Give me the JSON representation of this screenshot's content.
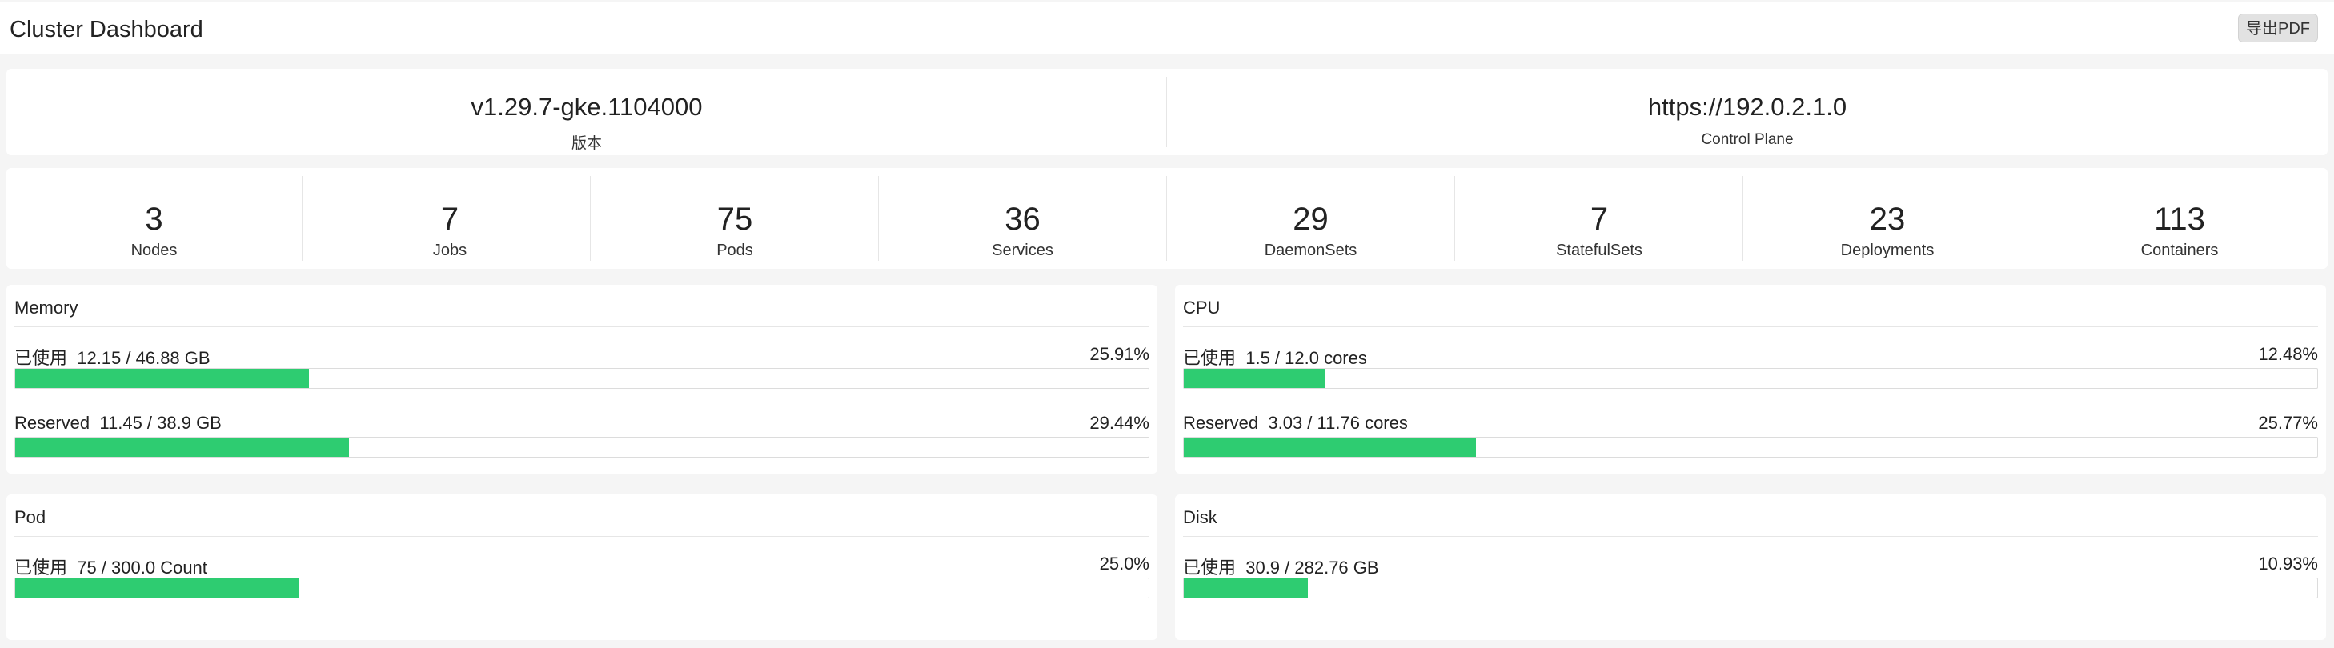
{
  "header": {
    "title": "Cluster Dashboard",
    "export_label": "导出PDF"
  },
  "cluster_info": [
    {
      "value": "v1.29.7-gke.1104000",
      "label": "版本"
    },
    {
      "value": "https://192.0.2.1.0",
      "label": "Control Plane"
    }
  ],
  "stats": [
    {
      "value": "3",
      "label": "Nodes"
    },
    {
      "value": "7",
      "label": "Jobs"
    },
    {
      "value": "75",
      "label": "Pods"
    },
    {
      "value": "36",
      "label": "Services"
    },
    {
      "value": "29",
      "label": "DaemonSets"
    },
    {
      "value": "7",
      "label": "StatefulSets"
    },
    {
      "value": "23",
      "label": "Deployments"
    },
    {
      "value": "113",
      "label": "Containers"
    }
  ],
  "resources": {
    "memory": {
      "title": "Memory",
      "used": {
        "label": "已使用  12.15 / 46.88 GB",
        "percent_text": "25.91%",
        "percent": 25.91
      },
      "reserved": {
        "label": "Reserved  11.45 / 38.9 GB",
        "percent_text": "29.44%",
        "percent": 29.44
      }
    },
    "cpu": {
      "title": "CPU",
      "used": {
        "label": "已使用  1.5 / 12.0 cores",
        "percent_text": "12.48%",
        "percent": 12.48
      },
      "reserved": {
        "label": "Reserved  3.03 / 11.76 cores",
        "percent_text": "25.77%",
        "percent": 25.77
      }
    },
    "pod": {
      "title": "Pod",
      "used": {
        "label": "已使用  75 / 300.0 Count",
        "percent_text": "25.0%",
        "percent": 25.0
      }
    },
    "disk": {
      "title": "Disk",
      "used": {
        "label": "已使用  30.9 / 282.76 GB",
        "percent_text": "10.93%",
        "percent": 10.93
      }
    }
  },
  "colors": {
    "bar_fill": "#2ecc71",
    "card_bg": "#ffffff",
    "page_bg": "#f5f5f5"
  }
}
